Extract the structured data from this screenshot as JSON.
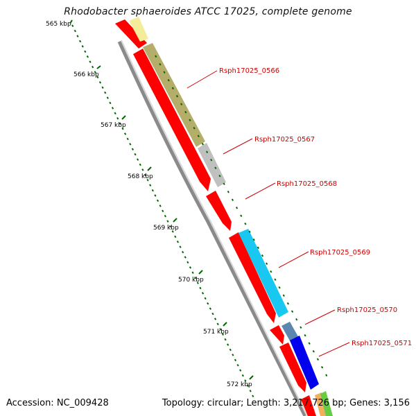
{
  "title": "Rhodobacter sphaeroides ATCC 17025, complete genome",
  "footer": {
    "accession": "Accession: NC_009428",
    "stats": "Topology: circular; Length: 3,217,726 bp; Genes: 3,156"
  },
  "colors": {
    "cds": "#ff0000",
    "backbone": "#888888",
    "ticks": "#006600",
    "labels": "#cc0000",
    "gene_0566": "#b5ad6a",
    "gene_0567": "#c0c0c0",
    "gene_0569": "#19c8f0",
    "gene_0570": "#5a86b0",
    "gene_0571": "#0000ee",
    "gene_prev": "#f4ec9a"
  },
  "ticks": [
    "565 kbp",
    "566 kbp",
    "567 kbp",
    "568 kbp",
    "569 kbp",
    "570 kbp",
    "571 kbp",
    "572 kbp"
  ],
  "genes": [
    {
      "name": "Rsph17025_0566"
    },
    {
      "name": "Rsph17025_0567"
    },
    {
      "name": "Rsph17025_0568"
    },
    {
      "name": "Rsph17025_0569"
    },
    {
      "name": "Rsph17025_0570"
    },
    {
      "name": "Rsph17025_0571"
    }
  ]
}
